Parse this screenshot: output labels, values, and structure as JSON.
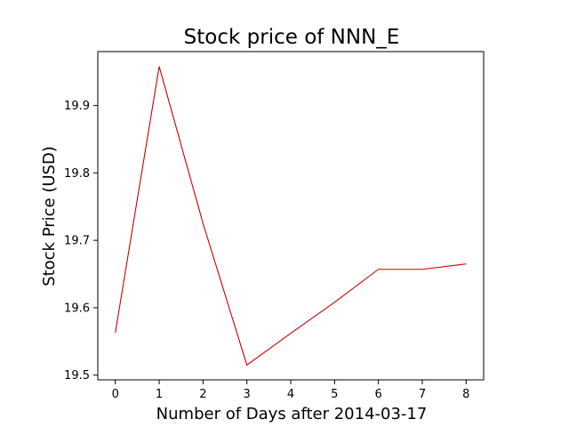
{
  "chart_data": {
    "type": "line",
    "title": "Stock price of NNN_E",
    "xlabel": "Number of Days after 2014-03-17",
    "ylabel": "Stock Price (USD)",
    "x": [
      0,
      1,
      2,
      3,
      4,
      5,
      6,
      7,
      8
    ],
    "series": [
      {
        "values": [
          19.563,
          19.958,
          19.725,
          19.515,
          19.562,
          19.608,
          19.657,
          19.657,
          19.665
        ],
        "color": "#cc0000"
      }
    ],
    "xlim": [
      -0.4,
      8.4
    ],
    "ylim": [
      19.493,
      19.98
    ],
    "xticks": [
      "0",
      "1",
      "2",
      "3",
      "4",
      "5",
      "6",
      "7",
      "8"
    ],
    "yticks": [
      "19.5",
      "19.6",
      "19.7",
      "19.8",
      "19.9"
    ],
    "grid": false,
    "legend": "none"
  }
}
